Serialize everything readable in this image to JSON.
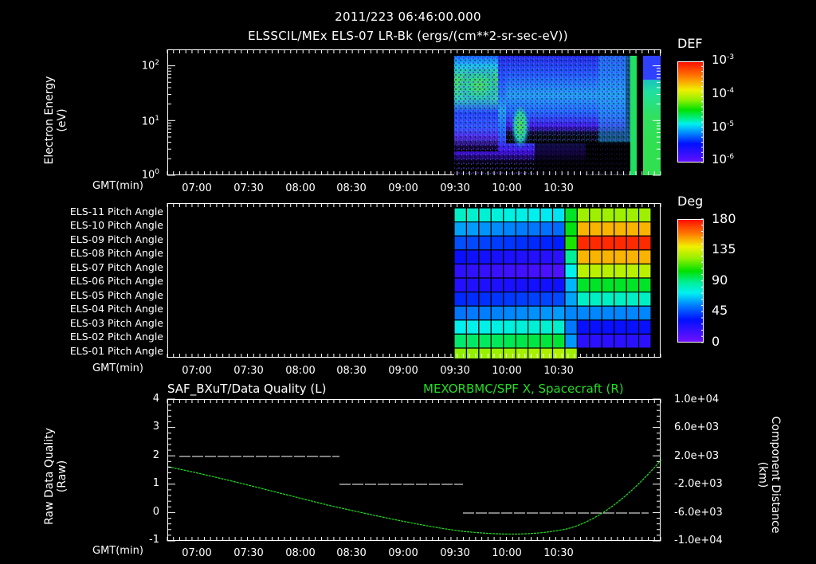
{
  "header": {
    "timestamp": "2011/223 06:46:00.000",
    "title": "ELSSCIL/MEx ELS-07 LR-Bk  (ergs/(cm**2-sr-sec-eV))"
  },
  "x_axis": {
    "label": "GMT(min)",
    "ticks": [
      "07:00",
      "07:30",
      "08:00",
      "08:30",
      "09:00",
      "09:30",
      "10:00",
      "10:30"
    ]
  },
  "colors": {
    "background": "#000000",
    "axis": "#ffffff",
    "spacecraft_line": "#22dd22",
    "quality_line": "#ffffff"
  },
  "panel_energy": {
    "ylabel_line1": "Electron Energy",
    "ylabel_line2": "(eV)",
    "yticks": [
      {
        "base": "10",
        "exp": "2"
      },
      {
        "base": "10",
        "exp": "1"
      },
      {
        "base": "10",
        "exp": "0"
      }
    ],
    "colorbar": {
      "title": "DEF",
      "ticks": [
        {
          "base": "10",
          "exp": "-3"
        },
        {
          "base": "10",
          "exp": "-4"
        },
        {
          "base": "10",
          "exp": "-5"
        },
        {
          "base": "10",
          "exp": "-6"
        }
      ]
    }
  },
  "panel_pitch": {
    "rows": [
      "ELS-11 Pitch Angle",
      "ELS-10 Pitch Angle",
      "ELS-09 Pitch Angle",
      "ELS-08 Pitch Angle",
      "ELS-07 Pitch Angle",
      "ELS-06 Pitch Angle",
      "ELS-05 Pitch Angle",
      "ELS-04 Pitch Angle",
      "ELS-03 Pitch Angle",
      "ELS-02 Pitch Angle",
      "ELS-01 Pitch Angle"
    ],
    "colorbar": {
      "title": "Deg",
      "ticks": [
        "180",
        "135",
        "90",
        "45",
        "0"
      ]
    }
  },
  "panel_quality": {
    "left_title": "SAF_BXuT/Data Quality (L)",
    "right_title": "MEXORBMC/SPF X, Spacecraft (R)",
    "ylabel_left_line1": "Raw Data Quality",
    "ylabel_left_line2": "(Raw)",
    "ylabel_right_line1": "Component Distance",
    "ylabel_right_line2": "(km)",
    "yticks_left": [
      "4",
      "3",
      "2",
      "1",
      "0",
      "-1"
    ],
    "yticks_right": [
      "1.0e+04",
      "6.0e+03",
      "2.0e+03",
      "-2.0e+03",
      "-6.0e+03",
      "-1.0e+04"
    ]
  },
  "chart_data": [
    {
      "type": "heatmap",
      "title": "ELSSCIL/MEx ELS-07 LR-Bk (ergs/(cm**2-sr-sec-eV))",
      "xlabel": "GMT(min)",
      "ylabel": "Electron Energy (eV)",
      "x_range": [
        "06:46",
        "10:46"
      ],
      "y_scale": "log",
      "ylim": [
        1,
        200
      ],
      "colorbar": {
        "label": "DEF",
        "scale": "log",
        "range": [
          1e-06,
          0.001
        ]
      },
      "notes": "No data before ~09:03; broad emission 09:03-10:47, enhanced green regions near 09:03-09:15 (30-100 eV), 09:27-09:32 (3-15 eV), and 10:33-10:47 (1-60 eV)"
    },
    {
      "type": "heatmap",
      "title": "Pitch Angle",
      "xlabel": "GMT(min)",
      "categories": [
        "ELS-11",
        "ELS-10",
        "ELS-09",
        "ELS-08",
        "ELS-07",
        "ELS-06",
        "ELS-05",
        "ELS-04",
        "ELS-03",
        "ELS-02",
        "ELS-01"
      ],
      "colorbar": {
        "label": "Deg",
        "range": [
          0,
          180
        ]
      },
      "x_range": [
        "09:03",
        "10:43"
      ],
      "values_before_1000": [
        75,
        55,
        40,
        25,
        15,
        25,
        40,
        55,
        75,
        95,
        125
      ],
      "values_after_1005": [
        125,
        150,
        175,
        150,
        130,
        100,
        80,
        55,
        30,
        20,
        null
      ],
      "notes": "No data before ~09:03; sharp transition near 10:00"
    },
    {
      "type": "line",
      "title": "SAF_BXuT/Data Quality (L) | MEXORBMC/SPF X, Spacecraft (R)",
      "xlabel": "GMT(min)",
      "series": [
        {
          "name": "Data Quality (L)",
          "axis": "left",
          "ylim": [
            -1,
            4
          ],
          "x": [
            "06:48",
            "08:05",
            "08:05",
            "09:05",
            "09:05",
            "10:44"
          ],
          "values": [
            2,
            2,
            1,
            1,
            0,
            0
          ]
        },
        {
          "name": "SPF X, Spacecraft (R)",
          "axis": "right",
          "ylim": [
            -10000,
            10000
          ],
          "x": [
            "06:46",
            "07:15",
            "07:45",
            "08:15",
            "08:45",
            "09:15",
            "09:30",
            "09:45",
            "10:00",
            "10:15",
            "10:30",
            "10:46"
          ],
          "values": [
            -700,
            -1800,
            -3100,
            -4300,
            -5400,
            -6100,
            -6300,
            -6100,
            -4800,
            -2200,
            600,
            4700
          ]
        }
      ]
    }
  ]
}
